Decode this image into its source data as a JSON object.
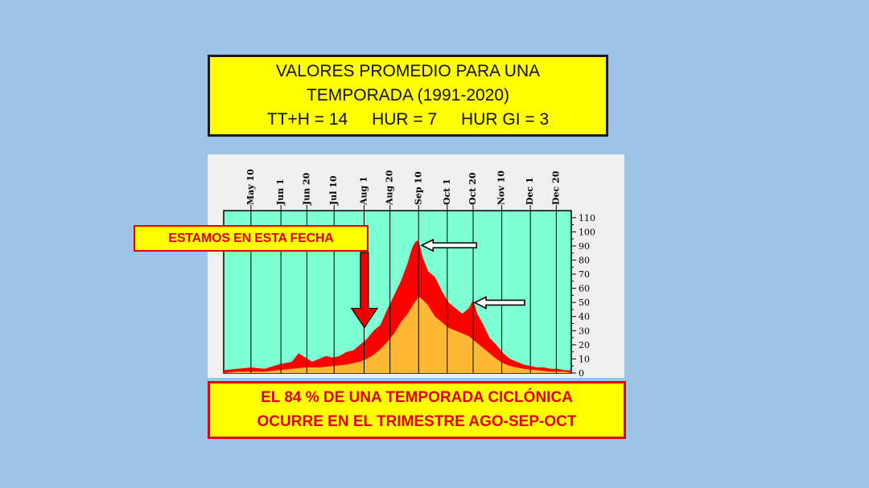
{
  "title_box": {
    "line1": "VALORES PROMEDIO PARA UNA",
    "line2": "TEMPORADA (1991-2020)",
    "stat1": "TT+H = 14",
    "stat2": "HUR = 7",
    "stat3": "HUR GI = 3"
  },
  "callout": {
    "text": "ESTAMOS EN ESTA FECHA"
  },
  "bottom_box": {
    "line1": "EL 84 % DE UNA TEMPORADA CICLÓNICA",
    "line2": "OCURRE EN EL TRIMESTRE AGO-SEP-OCT"
  },
  "colors": {
    "background": "#9dc3e6",
    "plot_bg": "#7fffd4",
    "red_area": "#ff0000",
    "orange_area": "#ffb833",
    "highlight": "#ffff00"
  },
  "chart_data": {
    "type": "area",
    "title": "",
    "xlabel": "",
    "ylabel": "",
    "x_tick_labels": [
      "May 10",
      "Jun 1",
      "Jun 20",
      "Jul 10",
      "Aug 1",
      "Aug 20",
      "Sep 10",
      "Oct 1",
      "Oct 20",
      "Nov 10",
      "Dec 1",
      "Dec 20"
    ],
    "x_tick_days": [
      130,
      152,
      171,
      191,
      213,
      232,
      253,
      274,
      293,
      314,
      335,
      354
    ],
    "y_ticks": [
      0,
      10,
      20,
      30,
      40,
      50,
      60,
      70,
      80,
      90,
      100,
      110
    ],
    "xlim": [
      110,
      365
    ],
    "ylim": [
      0,
      115
    ],
    "y_axis_position": "right",
    "grid": "vertical lines at x ticks",
    "series": [
      {
        "role": "total",
        "color": "#ff0000",
        "x": [
          110,
          120,
          130,
          140,
          150,
          160,
          165,
          170,
          175,
          180,
          185,
          190,
          195,
          200,
          205,
          210,
          215,
          220,
          225,
          230,
          235,
          240,
          245,
          248,
          250,
          252,
          254,
          256,
          260,
          265,
          270,
          275,
          280,
          285,
          290,
          293,
          296,
          300,
          305,
          310,
          315,
          320,
          325,
          330,
          335,
          340,
          345,
          350,
          355,
          360,
          365
        ],
        "values": [
          2,
          3,
          4,
          3,
          6,
          8,
          14,
          11,
          8,
          10,
          12,
          11,
          12,
          15,
          16,
          20,
          24,
          30,
          34,
          45,
          55,
          65,
          78,
          88,
          92,
          94,
          90,
          82,
          72,
          68,
          58,
          50,
          46,
          42,
          46,
          52,
          42,
          35,
          25,
          20,
          14,
          10,
          8,
          6,
          5,
          4,
          4,
          3,
          3,
          2,
          2
        ]
      },
      {
        "role": "hurricanes",
        "color": "#ffb833",
        "x": [
          110,
          120,
          130,
          140,
          150,
          160,
          170,
          180,
          190,
          200,
          210,
          215,
          220,
          225,
          230,
          235,
          240,
          245,
          250,
          253,
          256,
          260,
          265,
          270,
          275,
          280,
          285,
          290,
          295,
          300,
          305,
          310,
          315,
          320,
          325,
          330,
          340,
          350,
          360,
          365
        ],
        "values": [
          0,
          1,
          1,
          1,
          2,
          3,
          4,
          4,
          5,
          6,
          8,
          10,
          13,
          17,
          22,
          28,
          36,
          42,
          50,
          54,
          52,
          48,
          40,
          36,
          32,
          30,
          28,
          26,
          22,
          18,
          14,
          10,
          7,
          5,
          4,
          3,
          2,
          1,
          1,
          0
        ]
      }
    ],
    "annotations": [
      {
        "type": "arrow",
        "points_to": "Sep 10 peak",
        "x": 253,
        "y": 95
      },
      {
        "type": "arrow",
        "points_to": "Oct 20 secondary peak",
        "x": 293,
        "y": 51
      },
      {
        "type": "arrow",
        "points_to": "current date",
        "x": 215,
        "y": 31
      }
    ]
  }
}
